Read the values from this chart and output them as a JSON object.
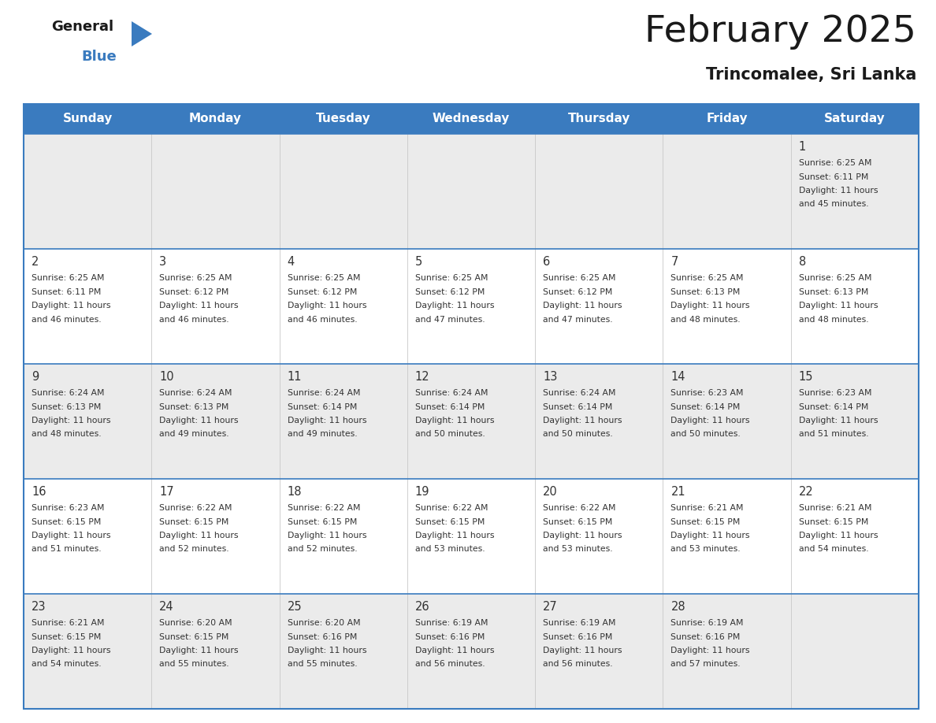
{
  "title": "February 2025",
  "subtitle": "Trincomalee, Sri Lanka",
  "header_color": "#3a7bbf",
  "header_text_color": "#ffffff",
  "days_of_week": [
    "Sunday",
    "Monday",
    "Tuesday",
    "Wednesday",
    "Thursday",
    "Friday",
    "Saturday"
  ],
  "bg_color": "#ffffff",
  "cell_bg_light": "#ebebeb",
  "grid_color": "#3a7bbf",
  "text_color": "#333333",
  "calendar": [
    [
      null,
      null,
      null,
      null,
      null,
      null,
      {
        "day": 1,
        "sunrise": "6:25 AM",
        "sunset": "6:11 PM",
        "daylight_hours": 11,
        "daylight_minutes": 45
      }
    ],
    [
      {
        "day": 2,
        "sunrise": "6:25 AM",
        "sunset": "6:11 PM",
        "daylight_hours": 11,
        "daylight_minutes": 46
      },
      {
        "day": 3,
        "sunrise": "6:25 AM",
        "sunset": "6:12 PM",
        "daylight_hours": 11,
        "daylight_minutes": 46
      },
      {
        "day": 4,
        "sunrise": "6:25 AM",
        "sunset": "6:12 PM",
        "daylight_hours": 11,
        "daylight_minutes": 46
      },
      {
        "day": 5,
        "sunrise": "6:25 AM",
        "sunset": "6:12 PM",
        "daylight_hours": 11,
        "daylight_minutes": 47
      },
      {
        "day": 6,
        "sunrise": "6:25 AM",
        "sunset": "6:12 PM",
        "daylight_hours": 11,
        "daylight_minutes": 47
      },
      {
        "day": 7,
        "sunrise": "6:25 AM",
        "sunset": "6:13 PM",
        "daylight_hours": 11,
        "daylight_minutes": 48
      },
      {
        "day": 8,
        "sunrise": "6:25 AM",
        "sunset": "6:13 PM",
        "daylight_hours": 11,
        "daylight_minutes": 48
      }
    ],
    [
      {
        "day": 9,
        "sunrise": "6:24 AM",
        "sunset": "6:13 PM",
        "daylight_hours": 11,
        "daylight_minutes": 48
      },
      {
        "day": 10,
        "sunrise": "6:24 AM",
        "sunset": "6:13 PM",
        "daylight_hours": 11,
        "daylight_minutes": 49
      },
      {
        "day": 11,
        "sunrise": "6:24 AM",
        "sunset": "6:14 PM",
        "daylight_hours": 11,
        "daylight_minutes": 49
      },
      {
        "day": 12,
        "sunrise": "6:24 AM",
        "sunset": "6:14 PM",
        "daylight_hours": 11,
        "daylight_minutes": 50
      },
      {
        "day": 13,
        "sunrise": "6:24 AM",
        "sunset": "6:14 PM",
        "daylight_hours": 11,
        "daylight_minutes": 50
      },
      {
        "day": 14,
        "sunrise": "6:23 AM",
        "sunset": "6:14 PM",
        "daylight_hours": 11,
        "daylight_minutes": 50
      },
      {
        "day": 15,
        "sunrise": "6:23 AM",
        "sunset": "6:14 PM",
        "daylight_hours": 11,
        "daylight_minutes": 51
      }
    ],
    [
      {
        "day": 16,
        "sunrise": "6:23 AM",
        "sunset": "6:15 PM",
        "daylight_hours": 11,
        "daylight_minutes": 51
      },
      {
        "day": 17,
        "sunrise": "6:22 AM",
        "sunset": "6:15 PM",
        "daylight_hours": 11,
        "daylight_minutes": 52
      },
      {
        "day": 18,
        "sunrise": "6:22 AM",
        "sunset": "6:15 PM",
        "daylight_hours": 11,
        "daylight_minutes": 52
      },
      {
        "day": 19,
        "sunrise": "6:22 AM",
        "sunset": "6:15 PM",
        "daylight_hours": 11,
        "daylight_minutes": 53
      },
      {
        "day": 20,
        "sunrise": "6:22 AM",
        "sunset": "6:15 PM",
        "daylight_hours": 11,
        "daylight_minutes": 53
      },
      {
        "day": 21,
        "sunrise": "6:21 AM",
        "sunset": "6:15 PM",
        "daylight_hours": 11,
        "daylight_minutes": 53
      },
      {
        "day": 22,
        "sunrise": "6:21 AM",
        "sunset": "6:15 PM",
        "daylight_hours": 11,
        "daylight_minutes": 54
      }
    ],
    [
      {
        "day": 23,
        "sunrise": "6:21 AM",
        "sunset": "6:15 PM",
        "daylight_hours": 11,
        "daylight_minutes": 54
      },
      {
        "day": 24,
        "sunrise": "6:20 AM",
        "sunset": "6:15 PM",
        "daylight_hours": 11,
        "daylight_minutes": 55
      },
      {
        "day": 25,
        "sunrise": "6:20 AM",
        "sunset": "6:16 PM",
        "daylight_hours": 11,
        "daylight_minutes": 55
      },
      {
        "day": 26,
        "sunrise": "6:19 AM",
        "sunset": "6:16 PM",
        "daylight_hours": 11,
        "daylight_minutes": 56
      },
      {
        "day": 27,
        "sunrise": "6:19 AM",
        "sunset": "6:16 PM",
        "daylight_hours": 11,
        "daylight_minutes": 56
      },
      {
        "day": 28,
        "sunrise": "6:19 AM",
        "sunset": "6:16 PM",
        "daylight_hours": 11,
        "daylight_minutes": 57
      },
      null
    ]
  ],
  "logo_text_general": "General",
  "logo_text_blue": "Blue",
  "logo_triangle_color": "#3a7bbf",
  "fig_width": 11.88,
  "fig_height": 9.18,
  "dpi": 100
}
